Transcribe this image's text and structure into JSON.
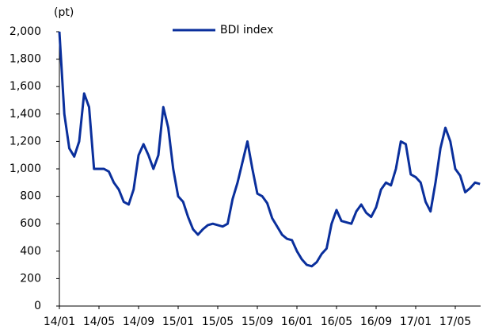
{
  "chart_data": {
    "type": "line",
    "y_unit_label": "(pt)",
    "categories": [
      "14/01",
      null,
      null,
      null,
      null,
      null,
      null,
      null,
      "14/05",
      null,
      null,
      null,
      null,
      null,
      null,
      null,
      "14/09",
      null,
      null,
      null,
      null,
      null,
      null,
      null,
      "15/01",
      null,
      null,
      null,
      null,
      null,
      null,
      null,
      "15/05",
      null,
      null,
      null,
      null,
      null,
      null,
      null,
      "15/09",
      null,
      null,
      null,
      null,
      null,
      null,
      null,
      "16/01",
      null,
      null,
      null,
      null,
      null,
      null,
      null,
      "16/05",
      null,
      null,
      null,
      null,
      null,
      null,
      null,
      "16/09",
      null,
      null,
      null,
      null,
      null,
      null,
      null,
      "17/01",
      null,
      null,
      null,
      null,
      null,
      null,
      null,
      "17/05",
      null,
      null,
      null,
      null,
      null
    ],
    "series": [
      {
        "name": "BDI index",
        "color": "#0a2f9c",
        "values": [
          2000,
          1400,
          1150,
          1090,
          1200,
          1550,
          1450,
          1000,
          1000,
          1000,
          980,
          900,
          850,
          760,
          740,
          850,
          1100,
          1180,
          1100,
          1000,
          1100,
          1450,
          1300,
          1000,
          800,
          760,
          650,
          560,
          520,
          560,
          590,
          600,
          590,
          580,
          600,
          780,
          900,
          1050,
          1200,
          1000,
          820,
          800,
          750,
          640,
          580,
          520,
          490,
          480,
          400,
          340,
          300,
          290,
          320,
          380,
          420,
          600,
          700,
          620,
          610,
          600,
          690,
          740,
          680,
          650,
          720,
          850,
          900,
          880,
          1000,
          1200,
          1180,
          960,
          940,
          900,
          760,
          690,
          900,
          1150,
          1300,
          1200,
          1000,
          950,
          830,
          860,
          900,
          890
        ]
      }
    ],
    "ylim": [
      0,
      2000
    ],
    "yticks": [
      0,
      200,
      400,
      600,
      800,
      {
        "value": 1000,
        "label": "1,000"
      },
      {
        "value": 1200,
        "label": "1,200"
      },
      {
        "value": 1400,
        "label": "1,400"
      },
      {
        "value": 1600,
        "label": "1,600"
      },
      {
        "value": 1800,
        "label": "1,800"
      },
      {
        "value": 2000,
        "label": "2,000"
      }
    ],
    "grid": false
  }
}
